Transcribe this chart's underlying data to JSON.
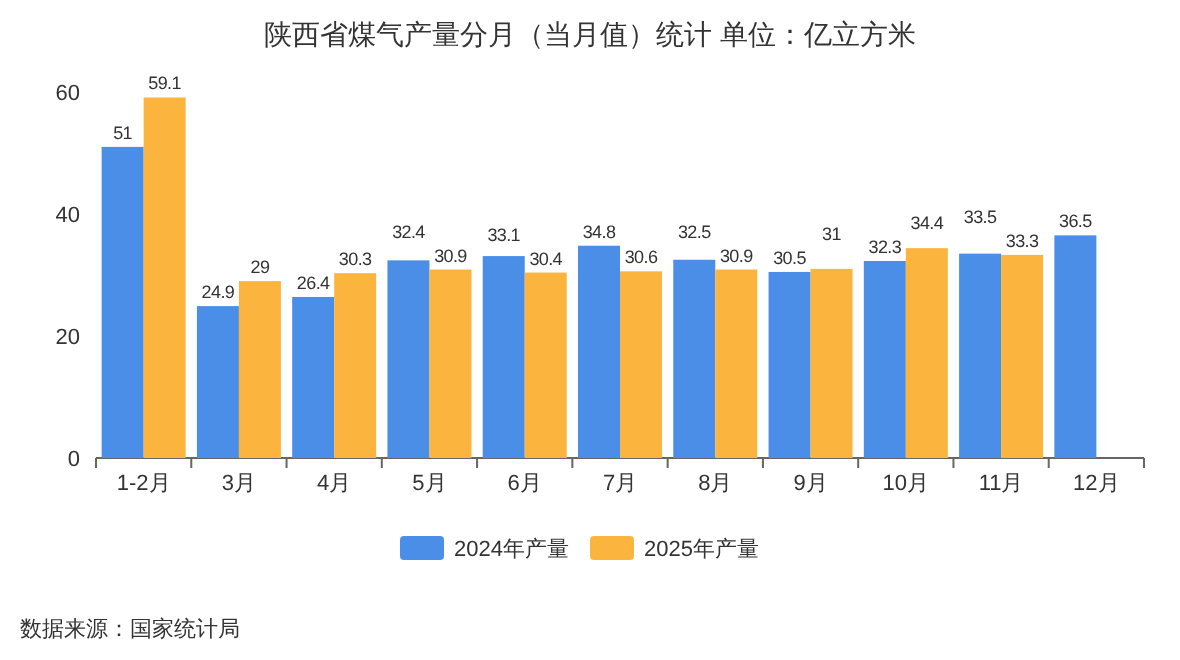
{
  "chart_data": {
    "type": "bar",
    "title": "陕西省煤气产量分月（当月值）统计 单位：亿立方米",
    "categories": [
      "1-2月",
      "3月",
      "4月",
      "5月",
      "6月",
      "7月",
      "8月",
      "9月",
      "10月",
      "11月",
      "12月"
    ],
    "series": [
      {
        "name": "2024年产量",
        "color": "#4a8ee8",
        "values": [
          51,
          24.9,
          26.4,
          32.4,
          33.1,
          34.8,
          32.5,
          30.5,
          32.3,
          33.5,
          36.5
        ]
      },
      {
        "name": "2025年产量",
        "color": "#fbb53f",
        "values": [
          59.1,
          29,
          30.3,
          30.9,
          30.4,
          30.6,
          30.9,
          31,
          34.4,
          33.3,
          null
        ]
      }
    ],
    "ylim": [
      0,
      60
    ],
    "yticks": [
      0,
      20,
      40,
      60
    ],
    "data_labels": true,
    "legend": "bottom",
    "annotations": [
      "数据来源：国家统计局"
    ]
  }
}
